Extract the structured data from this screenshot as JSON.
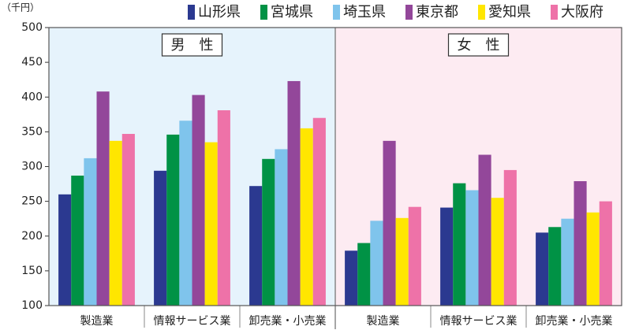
{
  "chart_data": {
    "type": "bar",
    "y_unit": "（千円）",
    "panels": [
      "男　性",
      "女　性"
    ],
    "panel_colors": [
      "#e6f3fc",
      "#fdebf2"
    ],
    "categories": [
      "製造業",
      "情報サービス業",
      "卸売業・小売業",
      "製造業",
      "情報サービス業",
      "卸売業・小売業"
    ],
    "series": [
      {
        "name": "山形県",
        "color": "#2b3990",
        "values": [
          260,
          294,
          272,
          179,
          241,
          205
        ]
      },
      {
        "name": "宮城県",
        "color": "#009245",
        "values": [
          287,
          346,
          311,
          190,
          276,
          213
        ]
      },
      {
        "name": "埼玉県",
        "color": "#7fc4ec",
        "values": [
          312,
          366,
          325,
          222,
          266,
          225
        ]
      },
      {
        "name": "東京都",
        "color": "#93479a",
        "values": [
          408,
          403,
          423,
          337,
          317,
          279
        ]
      },
      {
        "name": "愛知県",
        "color": "#ffe600",
        "values": [
          337,
          335,
          355,
          226,
          255,
          234
        ]
      },
      {
        "name": "大阪府",
        "color": "#ee72a8",
        "values": [
          347,
          381,
          370,
          242,
          295,
          250
        ]
      }
    ],
    "ylim": [
      100,
      500
    ],
    "yticks": [
      100,
      150,
      200,
      250,
      300,
      350,
      400,
      450,
      500
    ]
  }
}
